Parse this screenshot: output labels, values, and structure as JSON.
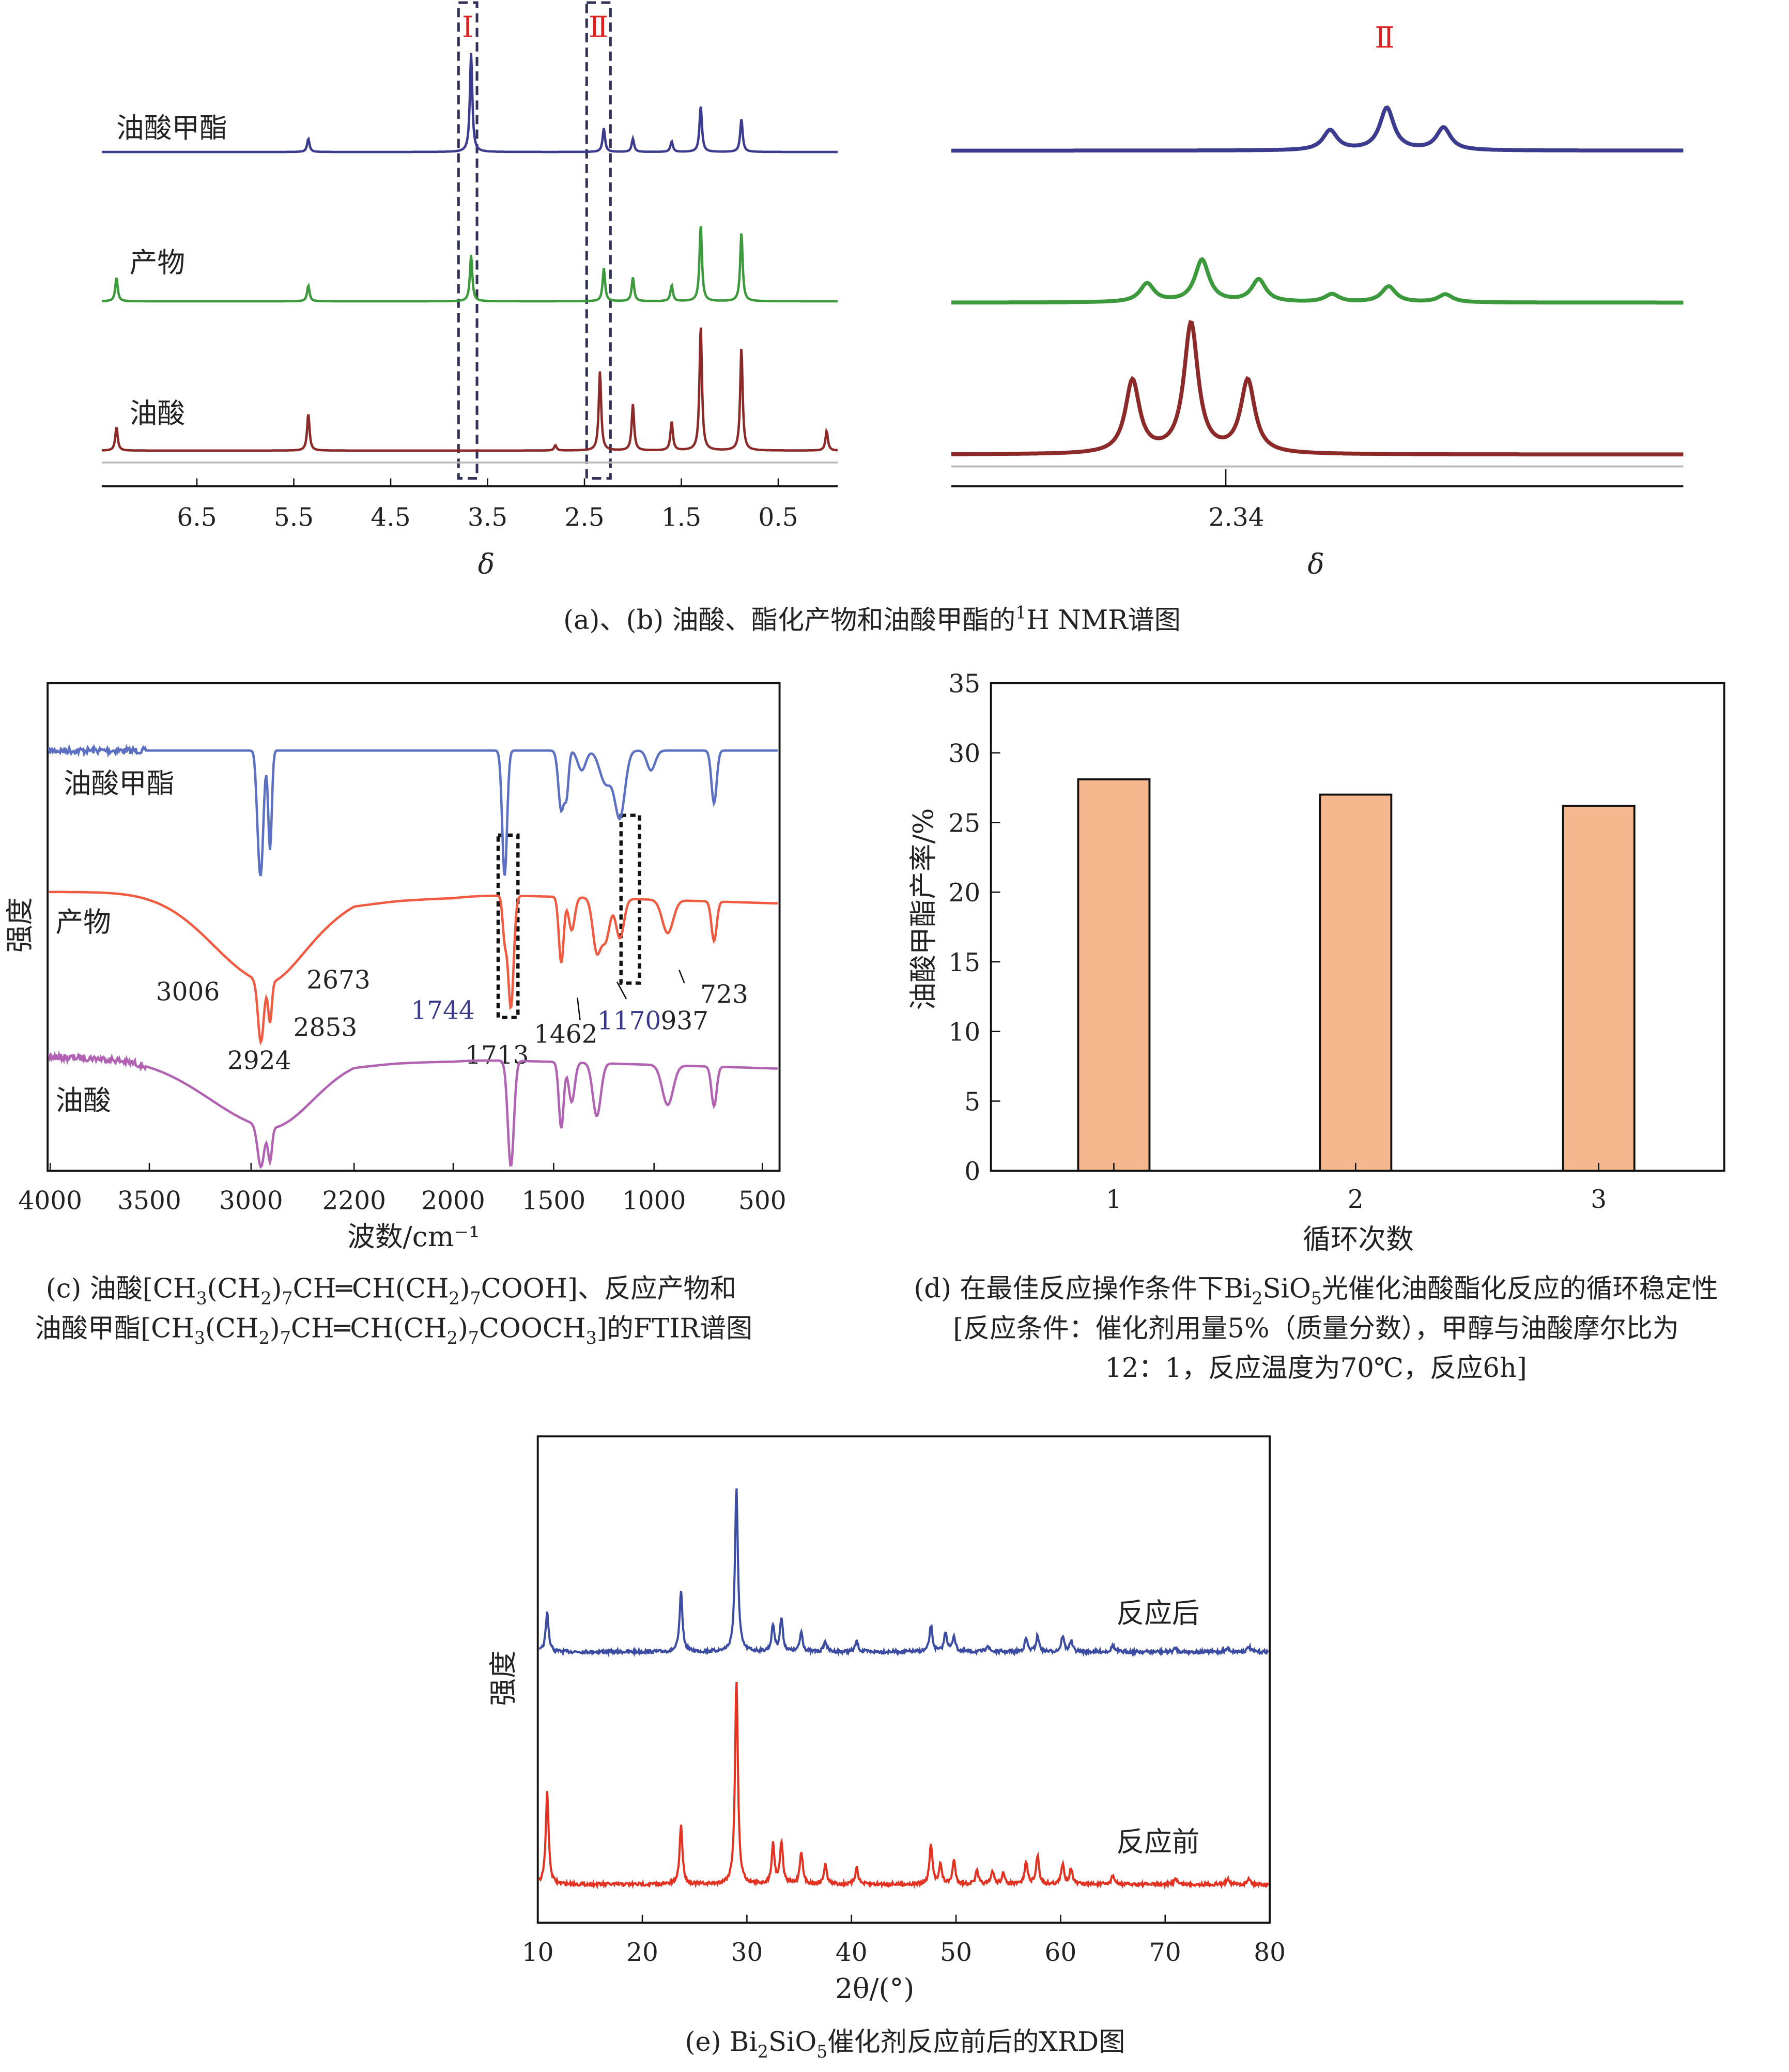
{
  "chart_data": [
    {
      "id": "a",
      "type": "line",
      "title": "¹H NMR",
      "xlabel": "δ",
      "xlim": [
        7.4,
        -0.1
      ],
      "xticks": [
        "6.5",
        "5.5",
        "4.5",
        "3.5",
        "2.5",
        "1.5",
        "0.5"
      ],
      "xtick_values": [
        6.5,
        5.5,
        4.5,
        3.5,
        2.5,
        1.5,
        0.5
      ],
      "regions": [
        {
          "label": "Ⅰ",
          "center": 3.67
        },
        {
          "label": "Ⅱ",
          "center": 2.33
        }
      ],
      "series": [
        {
          "name": "油酸甲酯",
          "color": "#3b3b8f",
          "peaks": [
            [
              5.35,
              10
            ],
            [
              3.67,
              75
            ],
            [
              2.3,
              18
            ],
            [
              2.0,
              10
            ],
            [
              1.6,
              8
            ],
            [
              1.3,
              35
            ],
            [
              0.88,
              25
            ]
          ]
        },
        {
          "name": "产物",
          "color": "#3c9a3c",
          "peaks": [
            [
              7.33,
              18
            ],
            [
              5.35,
              12
            ],
            [
              3.67,
              35
            ],
            [
              2.3,
              25
            ],
            [
              2.0,
              18
            ],
            [
              1.6,
              12
            ],
            [
              1.3,
              58
            ],
            [
              0.88,
              52
            ]
          ]
        },
        {
          "name": "油酸",
          "color": "#8c2a2a",
          "peaks": [
            [
              7.33,
              18
            ],
            [
              5.35,
              28
            ],
            [
              2.8,
              4
            ],
            [
              2.34,
              60
            ],
            [
              2.0,
              35
            ],
            [
              1.6,
              22
            ],
            [
              1.3,
              95
            ],
            [
              0.88,
              78
            ],
            [
              0.0,
              15
            ]
          ]
        }
      ]
    },
    {
      "id": "b",
      "type": "line",
      "xlabel": "δ",
      "xlim": [
        2.49,
        2.09
      ],
      "xticks": [
        "2.34"
      ],
      "xtick_values": [
        2.34
      ],
      "region_label": "Ⅱ",
      "series": [
        {
          "name": "油酸甲酯",
          "color": "#3b3b8f",
          "peaks": [
            [
              2.283,
              15
            ],
            [
              2.252,
              32
            ],
            [
              2.221,
              17
            ]
          ]
        },
        {
          "name": "产物",
          "color": "#3c9a3c",
          "peaks": [
            [
              2.383,
              14
            ],
            [
              2.353,
              32
            ],
            [
              2.322,
              17
            ],
            [
              2.282,
              6
            ],
            [
              2.251,
              12
            ],
            [
              2.22,
              6
            ]
          ]
        },
        {
          "name": "油酸",
          "color": "#8c2a2a",
          "peaks": [
            [
              2.391,
              55
            ],
            [
              2.359,
              98
            ],
            [
              2.328,
              55
            ]
          ]
        }
      ]
    },
    {
      "id": "c",
      "type": "line",
      "xlabel": "波数/cm⁻¹",
      "ylabel": "强度",
      "xticks": [
        "4000",
        "3500",
        "3000",
        "2200",
        "2000",
        "1500",
        "1000",
        "500"
      ],
      "xtick_values": [
        4000,
        3500,
        3000,
        2200,
        2000,
        1500,
        1000,
        500
      ],
      "annotations": [
        "3006",
        "2924",
        "2853",
        "2673",
        "1744",
        "1713",
        "1462",
        "1170",
        "937",
        "723"
      ],
      "series": [
        {
          "name": "油酸甲酯",
          "color": "#5b70c2",
          "peaks": [
            [
              2950,
              20,
              15
            ],
            [
              2924,
              90,
              20
            ],
            [
              2853,
              75,
              14
            ],
            [
              1744,
              95,
              12
            ],
            [
              1462,
              45,
              14
            ],
            [
              1435,
              30,
              10
            ],
            [
              1360,
              15,
              20
            ],
            [
              1240,
              25,
              30
            ],
            [
              1170,
              50,
              25
            ],
            [
              1015,
              15,
              20
            ],
            [
              723,
              40,
              12
            ]
          ]
        },
        {
          "name": "产物",
          "color": "#f05a40",
          "peaks": [
            [
              2950,
              55,
              260
            ],
            [
              2924,
              45,
              22
            ],
            [
              2853,
              30,
              14
            ],
            [
              2600,
              25,
              300
            ],
            [
              1744,
              30,
              10
            ],
            [
              1713,
              85,
              14
            ],
            [
              1462,
              50,
              12
            ],
            [
              1410,
              25,
              15
            ],
            [
              1285,
              40,
              20
            ],
            [
              1240,
              30,
              20
            ],
            [
              1170,
              30,
              20
            ],
            [
              937,
              25,
              25
            ],
            [
              723,
              30,
              12
            ]
          ]
        },
        {
          "name": "油酸",
          "color": "#b262b2",
          "peaks": [
            [
              2950,
              40,
              300
            ],
            [
              2924,
              30,
              25
            ],
            [
              2853,
              25,
              15
            ],
            [
              2650,
              20,
              300
            ],
            [
              1713,
              80,
              15
            ],
            [
              1462,
              50,
              12
            ],
            [
              1410,
              30,
              15
            ],
            [
              1285,
              40,
              20
            ],
            [
              937,
              30,
              25
            ],
            [
              723,
              30,
              12
            ]
          ]
        }
      ]
    },
    {
      "id": "d",
      "type": "bar",
      "categories": [
        "1",
        "2",
        "3"
      ],
      "values": [
        28.1,
        27.0,
        26.2
      ],
      "color": "#f4b78e",
      "xlabel": "循环次数",
      "ylabel": "油酸甲酯产率/%",
      "ylim": [
        0,
        35
      ],
      "yticks": [
        "0",
        "5",
        "10",
        "15",
        "20",
        "25",
        "30",
        "35"
      ]
    },
    {
      "id": "e",
      "type": "line",
      "xlabel": "2θ/(°)",
      "ylabel": "强度",
      "xlim": [
        10,
        80
      ],
      "xticks": [
        "10",
        "20",
        "30",
        "40",
        "50",
        "60",
        "70",
        "80"
      ],
      "series": [
        {
          "name": "反应后",
          "color": "#3c4ca2",
          "peaks": [
            [
              10.9,
              30
            ],
            [
              23.7,
              45
            ],
            [
              29.0,
              125
            ],
            [
              32.5,
              20
            ],
            [
              33.3,
              25
            ],
            [
              35.2,
              15
            ],
            [
              37.5,
              8
            ],
            [
              40.5,
              8
            ],
            [
              47.6,
              20
            ],
            [
              49,
              15
            ],
            [
              49.8,
              12
            ],
            [
              53,
              5
            ],
            [
              56.7,
              10
            ],
            [
              57.8,
              12
            ],
            [
              60.2,
              12
            ],
            [
              61,
              8
            ],
            [
              65,
              5
            ],
            [
              71,
              3
            ],
            [
              76,
              3
            ],
            [
              78,
              4
            ]
          ]
        },
        {
          "name": "反应前",
          "color": "#e33222",
          "peaks": [
            [
              10.9,
              70
            ],
            [
              23.7,
              45
            ],
            [
              29.0,
              155
            ],
            [
              32.5,
              30
            ],
            [
              33.3,
              32
            ],
            [
              35.2,
              25
            ],
            [
              37.5,
              15
            ],
            [
              40.5,
              13
            ],
            [
              47.6,
              30
            ],
            [
              48.5,
              15
            ],
            [
              49.8,
              18
            ],
            [
              52,
              10
            ],
            [
              53.5,
              10
            ],
            [
              54.5,
              8
            ],
            [
              56.7,
              17
            ],
            [
              57.8,
              22
            ],
            [
              60.2,
              15
            ],
            [
              61,
              12
            ],
            [
              65,
              7
            ],
            [
              71,
              5
            ],
            [
              76,
              5
            ],
            [
              78,
              5
            ]
          ]
        }
      ]
    }
  ],
  "labels": {
    "a_series": [
      "油酸甲酯",
      "产物",
      "油酸"
    ],
    "region_I": "Ⅰ",
    "region_II": "Ⅱ",
    "delta": "δ",
    "c_series": [
      "油酸甲酯",
      "产物",
      "油酸"
    ],
    "e_series": [
      "反应后",
      "反应前"
    ]
  },
  "captions": {
    "ab": [
      {
        "t": "(a)、(b) 油酸、酯化产物和油酸甲酯的"
      },
      {
        "t": "1",
        "sup": true
      },
      {
        "t": "H NMR谱图"
      }
    ],
    "c1": [
      {
        "t": "(c) 油酸[CH"
      },
      {
        "t": "3",
        "sub": true
      },
      {
        "t": "(CH"
      },
      {
        "t": "2",
        "sub": true
      },
      {
        "t": ")"
      },
      {
        "t": "7",
        "sub": true
      },
      {
        "t": "CH═CH(CH"
      },
      {
        "t": "2",
        "sub": true
      },
      {
        "t": ")"
      },
      {
        "t": "7",
        "sub": true
      },
      {
        "t": "COOH]、反应产物和"
      }
    ],
    "c2": [
      {
        "t": "油酸甲酯[CH"
      },
      {
        "t": "3",
        "sub": true
      },
      {
        "t": "(CH"
      },
      {
        "t": "2",
        "sub": true
      },
      {
        "t": ")"
      },
      {
        "t": "7",
        "sub": true
      },
      {
        "t": "CH═CH(CH"
      },
      {
        "t": "2",
        "sub": true
      },
      {
        "t": ")"
      },
      {
        "t": "7",
        "sub": true
      },
      {
        "t": "COOCH"
      },
      {
        "t": "3",
        "sub": true
      },
      {
        "t": "]的FTIR谱图"
      }
    ],
    "d1": [
      {
        "t": "(d) 在最佳反应操作条件下Bi"
      },
      {
        "t": "2",
        "sub": true
      },
      {
        "t": "SiO"
      },
      {
        "t": "5",
        "sub": true
      },
      {
        "t": "光催化油酸酯化反应的循环稳定性"
      }
    ],
    "d2": [
      {
        "t": "[反应条件：催化剂用量5%（质量分数），甲醇与油酸摩尔比为"
      }
    ],
    "d3": [
      {
        "t": "12：1，反应温度为70℃，反应6h]"
      }
    ],
    "e": [
      {
        "t": "(e) Bi"
      },
      {
        "t": "2",
        "sub": true
      },
      {
        "t": "SiO"
      },
      {
        "t": "5",
        "sub": true
      },
      {
        "t": "催化剂反应前后的XRD图"
      }
    ]
  }
}
